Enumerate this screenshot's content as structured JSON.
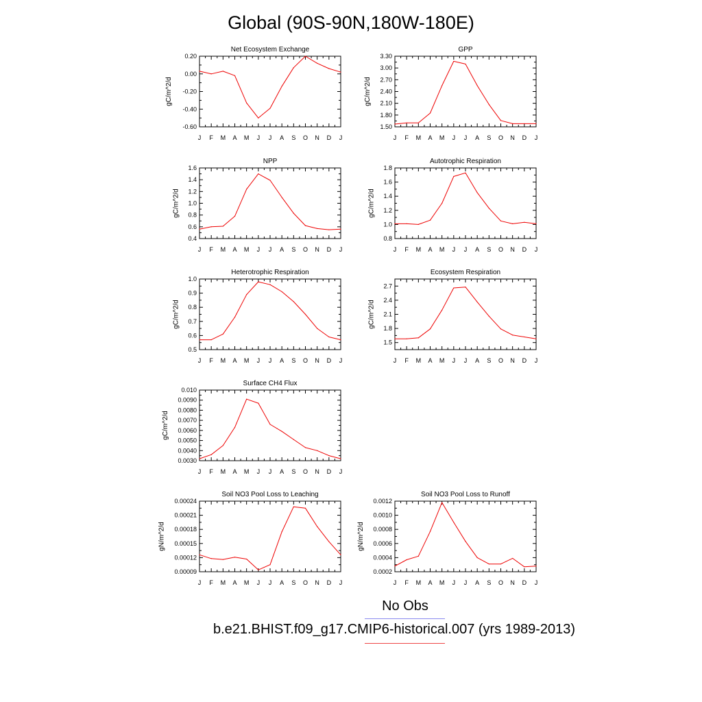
{
  "page": {
    "title": "Global (90S-90N,180W-180E)"
  },
  "legend": {
    "items": [
      {
        "label": "No Obs",
        "color": "#8888ee"
      },
      {
        "label": "b.e21.BHIST.f09_g17.CMIP6-historical.007 (yrs 1989-2013)",
        "color": "#ee4444"
      }
    ]
  },
  "chart_data": [
    {
      "type": "line",
      "title": "Net Ecosystem Exchange",
      "ylabel": "gC/m^2/d",
      "x": [
        "J",
        "F",
        "M",
        "A",
        "M",
        "J",
        "J",
        "A",
        "S",
        "O",
        "N",
        "D",
        "J"
      ],
      "ylim": [
        -0.6,
        0.2
      ],
      "yticks": [
        -0.6,
        -0.4,
        -0.2,
        0.0,
        0.2
      ],
      "ytick_labels": [
        "-0.60",
        "-0.40",
        "-0.20",
        "0.00",
        "0.20"
      ],
      "series": [
        {
          "color": "#ee0000",
          "values": [
            0.03,
            0.0,
            0.03,
            -0.02,
            -0.33,
            -0.5,
            -0.39,
            -0.14,
            0.07,
            0.2,
            0.12,
            0.06,
            0.02
          ]
        }
      ]
    },
    {
      "type": "line",
      "title": "GPP",
      "ylabel": "gC/m^2/d",
      "x": [
        "J",
        "F",
        "M",
        "A",
        "M",
        "J",
        "J",
        "A",
        "S",
        "O",
        "N",
        "D",
        "J"
      ],
      "ylim": [
        1.5,
        3.3
      ],
      "yticks": [
        1.5,
        1.8,
        2.1,
        2.4,
        2.7,
        3.0,
        3.3
      ],
      "ytick_labels": [
        "1.50",
        "1.80",
        "2.10",
        "2.40",
        "2.70",
        "3.00",
        "3.30"
      ],
      "series": [
        {
          "color": "#ee0000",
          "values": [
            1.57,
            1.6,
            1.6,
            1.85,
            2.55,
            3.17,
            3.1,
            2.55,
            2.07,
            1.66,
            1.58,
            1.58,
            1.58
          ]
        }
      ]
    },
    {
      "type": "line",
      "title": "NPP",
      "ylabel": "gC/m^2/d",
      "x": [
        "J",
        "F",
        "M",
        "A",
        "M",
        "J",
        "J",
        "A",
        "S",
        "O",
        "N",
        "D",
        "J"
      ],
      "ylim": [
        0.4,
        1.6
      ],
      "yticks": [
        0.4,
        0.6,
        0.8,
        1.0,
        1.2,
        1.4,
        1.6
      ],
      "ytick_labels": [
        "0.4",
        "0.6",
        "0.8",
        "1.0",
        "1.2",
        "1.4",
        "1.6"
      ],
      "series": [
        {
          "color": "#ee0000",
          "values": [
            0.56,
            0.6,
            0.61,
            0.78,
            1.24,
            1.5,
            1.39,
            1.1,
            0.83,
            0.62,
            0.57,
            0.55,
            0.56
          ]
        }
      ]
    },
    {
      "type": "line",
      "title": "Autotrophic Respiration",
      "ylabel": "gC/m^2/d",
      "x": [
        "J",
        "F",
        "M",
        "A",
        "M",
        "J",
        "J",
        "A",
        "S",
        "O",
        "N",
        "D",
        "J"
      ],
      "ylim": [
        0.8,
        1.8
      ],
      "yticks": [
        0.8,
        1.0,
        1.2,
        1.4,
        1.6,
        1.8
      ],
      "ytick_labels": [
        "0.8",
        "1.0",
        "1.2",
        "1.4",
        "1.6",
        "1.8"
      ],
      "series": [
        {
          "color": "#ee0000",
          "values": [
            1.01,
            1.01,
            1.0,
            1.06,
            1.3,
            1.68,
            1.73,
            1.45,
            1.23,
            1.05,
            1.01,
            1.03,
            1.01
          ]
        }
      ]
    },
    {
      "type": "line",
      "title": "Heterotrophic Respiration",
      "ylabel": "gC/m^2/d",
      "x": [
        "J",
        "F",
        "M",
        "A",
        "M",
        "J",
        "J",
        "A",
        "S",
        "O",
        "N",
        "D",
        "J"
      ],
      "ylim": [
        0.5,
        1.0
      ],
      "yticks": [
        0.5,
        0.6,
        0.7,
        0.8,
        0.9,
        1.0
      ],
      "ytick_labels": [
        "0.5",
        "0.6",
        "0.7",
        "0.8",
        "0.9",
        "1.0"
      ],
      "series": [
        {
          "color": "#ee0000",
          "values": [
            0.57,
            0.57,
            0.61,
            0.73,
            0.89,
            0.98,
            0.96,
            0.91,
            0.84,
            0.75,
            0.65,
            0.59,
            0.57
          ]
        }
      ]
    },
    {
      "type": "line",
      "title": "Ecosystem Respiration",
      "ylabel": "gC/m^2/d",
      "x": [
        "J",
        "F",
        "M",
        "A",
        "M",
        "J",
        "J",
        "A",
        "S",
        "O",
        "N",
        "D",
        "J"
      ],
      "ylim": [
        1.35,
        2.85
      ],
      "yticks": [
        1.5,
        1.8,
        2.1,
        2.4,
        2.7
      ],
      "ytick_labels": [
        "1.5",
        "1.8",
        "2.1",
        "2.4",
        "2.7"
      ],
      "series": [
        {
          "color": "#ee0000",
          "values": [
            1.58,
            1.58,
            1.6,
            1.79,
            2.19,
            2.66,
            2.68,
            2.36,
            2.06,
            1.79,
            1.66,
            1.62,
            1.58
          ]
        }
      ]
    },
    {
      "type": "line",
      "title": "Surface CH4 Flux",
      "ylabel": "gC/m^2/d",
      "x": [
        "J",
        "F",
        "M",
        "A",
        "M",
        "J",
        "J",
        "A",
        "S",
        "O",
        "N",
        "D",
        "J"
      ],
      "ylim": [
        0.003,
        0.01
      ],
      "yticks": [
        0.003,
        0.004,
        0.005,
        0.006,
        0.007,
        0.008,
        0.009,
        0.01
      ],
      "ytick_labels": [
        "0.0030",
        "0.0040",
        "0.0050",
        "0.0060",
        "0.0070",
        "0.0080",
        "0.0090",
        "0.010"
      ],
      "series": [
        {
          "color": "#ee0000",
          "values": [
            0.0032,
            0.0036,
            0.0045,
            0.0063,
            0.0091,
            0.0087,
            0.0066,
            0.0059,
            0.0051,
            0.0043,
            0.004,
            0.0035,
            0.0032
          ]
        }
      ]
    },
    {
      "type": "line",
      "title": "Soil NO3 Pool Loss to Leaching",
      "ylabel": "gN/m^2/d",
      "x": [
        "J",
        "F",
        "M",
        "A",
        "M",
        "J",
        "J",
        "A",
        "S",
        "O",
        "N",
        "D",
        "J"
      ],
      "ylim": [
        9e-05,
        0.00024
      ],
      "yticks": [
        9e-05,
        0.00012,
        0.00015,
        0.00018,
        0.00021,
        0.00024
      ],
      "ytick_labels": [
        "0.00009",
        "0.00012",
        "0.00015",
        "0.00018",
        "0.00021",
        "0.00024"
      ],
      "series": [
        {
          "color": "#ee0000",
          "values": [
            0.000126,
            0.000118,
            0.000116,
            0.000121,
            0.000117,
            9.4e-05,
            0.000105,
            0.000175,
            0.000228,
            0.000225,
            0.000186,
            0.000154,
            0.000126
          ]
        }
      ]
    },
    {
      "type": "line",
      "title": "Soil NO3 Pool Loss to Runoff",
      "ylabel": "gN/m^2/d",
      "x": [
        "J",
        "F",
        "M",
        "A",
        "M",
        "J",
        "J",
        "A",
        "S",
        "O",
        "N",
        "D",
        "J"
      ],
      "ylim": [
        0.0002,
        0.0012
      ],
      "yticks": [
        0.0002,
        0.0004,
        0.0006,
        0.0008,
        0.001,
        0.0012
      ],
      "ytick_labels": [
        "0.0002",
        "0.0004",
        "0.0006",
        "0.0008",
        "0.0010",
        "0.0012"
      ],
      "series": [
        {
          "color": "#ee0000",
          "values": [
            0.00028,
            0.00037,
            0.00042,
            0.00077,
            0.00118,
            0.0009,
            0.00063,
            0.0004,
            0.00031,
            0.00031,
            0.00039,
            0.00027,
            0.00028
          ]
        }
      ]
    }
  ]
}
